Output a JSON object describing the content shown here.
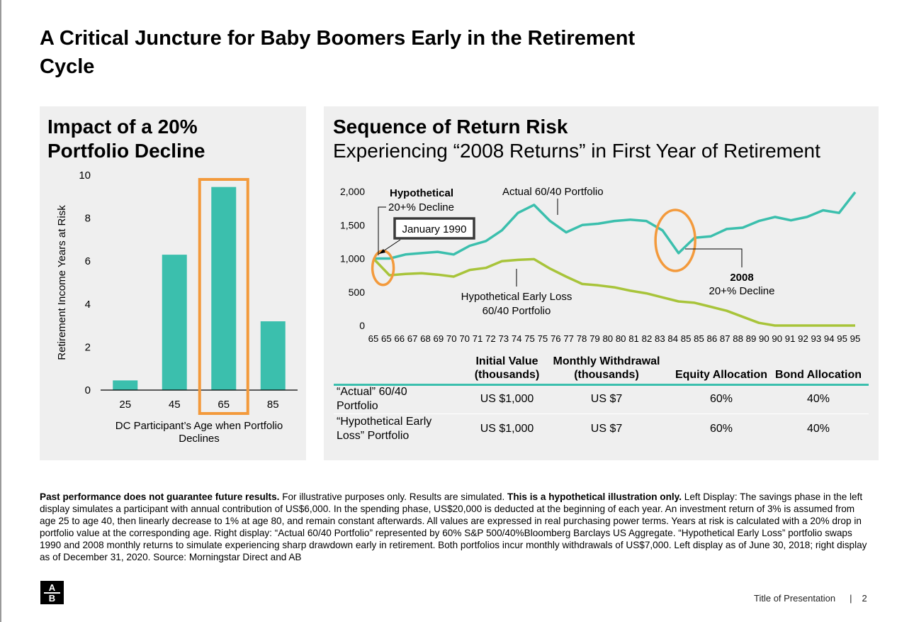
{
  "slide": {
    "title": "A Critical Juncture for Baby Boomers Early in the Retirement Cycle"
  },
  "left_panel": {
    "title": "Impact of a 20% Portfolio Decline"
  },
  "right_panel": {
    "title": "Sequence of Return Risk",
    "subtitle": "Experiencing “2008 Returns” in First Year of Retirement"
  },
  "colors": {
    "teal": "#3bbfad",
    "olive": "#a8c43a",
    "highlight_orange": "#f39a3c",
    "panel_bg": "#efefef"
  },
  "chart_data": [
    {
      "type": "bar",
      "categories": [
        "25",
        "45",
        "65",
        "85"
      ],
      "values": [
        0.45,
        6.3,
        9.45,
        3.2
      ],
      "highlighted_category": "65",
      "xlabel": "DC Participant’s Age when Portfolio Declines",
      "ylabel": "Retirement Income Years at Risk",
      "ylim": [
        0,
        10
      ],
      "yticks": [
        0,
        2,
        4,
        6,
        8,
        10
      ],
      "grid": false
    },
    {
      "type": "line",
      "x": [
        "65",
        "65",
        "66",
        "67",
        "68",
        "69",
        "70",
        "70",
        "71",
        "72",
        "73",
        "74",
        "75",
        "75",
        "76",
        "77",
        "78",
        "79",
        "80",
        "80",
        "81",
        "82",
        "83",
        "84",
        "85",
        "85",
        "86",
        "87",
        "88",
        "89",
        "90",
        "90",
        "91",
        "92",
        "93",
        "94",
        "95",
        "95"
      ],
      "ylim": [
        0,
        2000
      ],
      "yticks": [
        "2,000",
        "1,500",
        "1,000",
        "500",
        "0"
      ],
      "grid": false,
      "series": [
        {
          "name": "Actual 60/40 Portfolio",
          "x": [
            65,
            66,
            67,
            68,
            69,
            70,
            71,
            72,
            73,
            74,
            75,
            76,
            77,
            78,
            79,
            80,
            81,
            82,
            83,
            84,
            85,
            86,
            87,
            88,
            89,
            90,
            91,
            92,
            93,
            94,
            95
          ],
          "values": [
            1000,
            1000,
            1060,
            1080,
            1100,
            1060,
            1190,
            1260,
            1420,
            1680,
            1800,
            1560,
            1390,
            1500,
            1520,
            1560,
            1580,
            1560,
            1420,
            1080,
            1310,
            1330,
            1440,
            1460,
            1560,
            1620,
            1570,
            1620,
            1720,
            1680,
            1990
          ]
        },
        {
          "name": "Hypothetical Early Loss 60/40 Portfolio",
          "x": [
            65,
            66,
            67,
            68,
            69,
            70,
            71,
            72,
            73,
            74,
            75,
            76,
            77,
            78,
            79,
            80,
            81,
            82,
            83,
            84,
            85,
            86,
            87,
            88,
            89,
            90,
            91,
            92,
            93,
            94,
            95
          ],
          "values": [
            1000,
            750,
            770,
            780,
            760,
            730,
            830,
            860,
            960,
            980,
            990,
            850,
            730,
            620,
            600,
            570,
            520,
            480,
            420,
            360,
            340,
            280,
            220,
            130,
            40,
            0,
            0,
            0,
            0,
            0,
            0
          ]
        }
      ],
      "annotations": {
        "hypothetical_bold": "Hypothetical",
        "hypothetical_rest": "20+% Decline",
        "january": "January 1990",
        "actual": "Actual 60/40 Portfolio",
        "early_loss_1": "Hypothetical Early Loss",
        "early_loss_2": "60/40 Portfolio",
        "decline2008_bold": "2008",
        "decline2008_rest": "20+% Decline"
      }
    }
  ],
  "table": {
    "headers": {
      "initial": [
        "Initial Value",
        "(thousands)"
      ],
      "monthly": [
        "Monthly Withdrawal",
        "(thousands)"
      ],
      "equity": "Equity Allocation",
      "bond": "Bond Allocation"
    },
    "rows": [
      {
        "label": [
          "“Actual” 60/40",
          "Portfolio"
        ],
        "initial": "US $1,000",
        "monthly": "US $7",
        "equity": "60%",
        "bond": "40%"
      },
      {
        "label": [
          "“Hypothetical Early",
          "Loss” Portfolio"
        ],
        "initial": "US $1,000",
        "monthly": "US $7",
        "equity": "60%",
        "bond": "40%"
      }
    ]
  },
  "footnote": {
    "bold1": "Past performance does not guarantee future results.",
    "text1": " For illustrative purposes only. Results are simulated. ",
    "bold2": "This is a hypothetical illustration only.",
    "text2": " Left Display: The savings phase in the left display simulates a participant with annual contribution of US$6,000. In the spending phase, US$20,000 is deducted at the beginning of each year. An investment return of 3% is assumed from age 25 to age 40, then linearly decrease to 1% at age 80, and remain constant afterwards. All values are expressed in real purchasing power terms. Years at risk is calculated with a 20% drop in portfolio value at the corresponding age. Right display: “Actual 60/40 Portfolio” represented by 60% S&P 500/40%Bloomberg Barclays US Aggregate. “Hypothetical Early Loss” portfolio swaps 1990 and 2008 monthly returns to simulate experiencing sharp drawdown early in retirement. Both portfolios incur monthly withdrawals of US$7,000. Left display as of June 30, 2018; right display as of December 31, 2020. Source: Morningstar Direct and AB"
  },
  "logo": {
    "top": "A",
    "bottom": "B"
  },
  "footer": {
    "title": "Title of Presentation",
    "separator": "|",
    "page": "2"
  }
}
